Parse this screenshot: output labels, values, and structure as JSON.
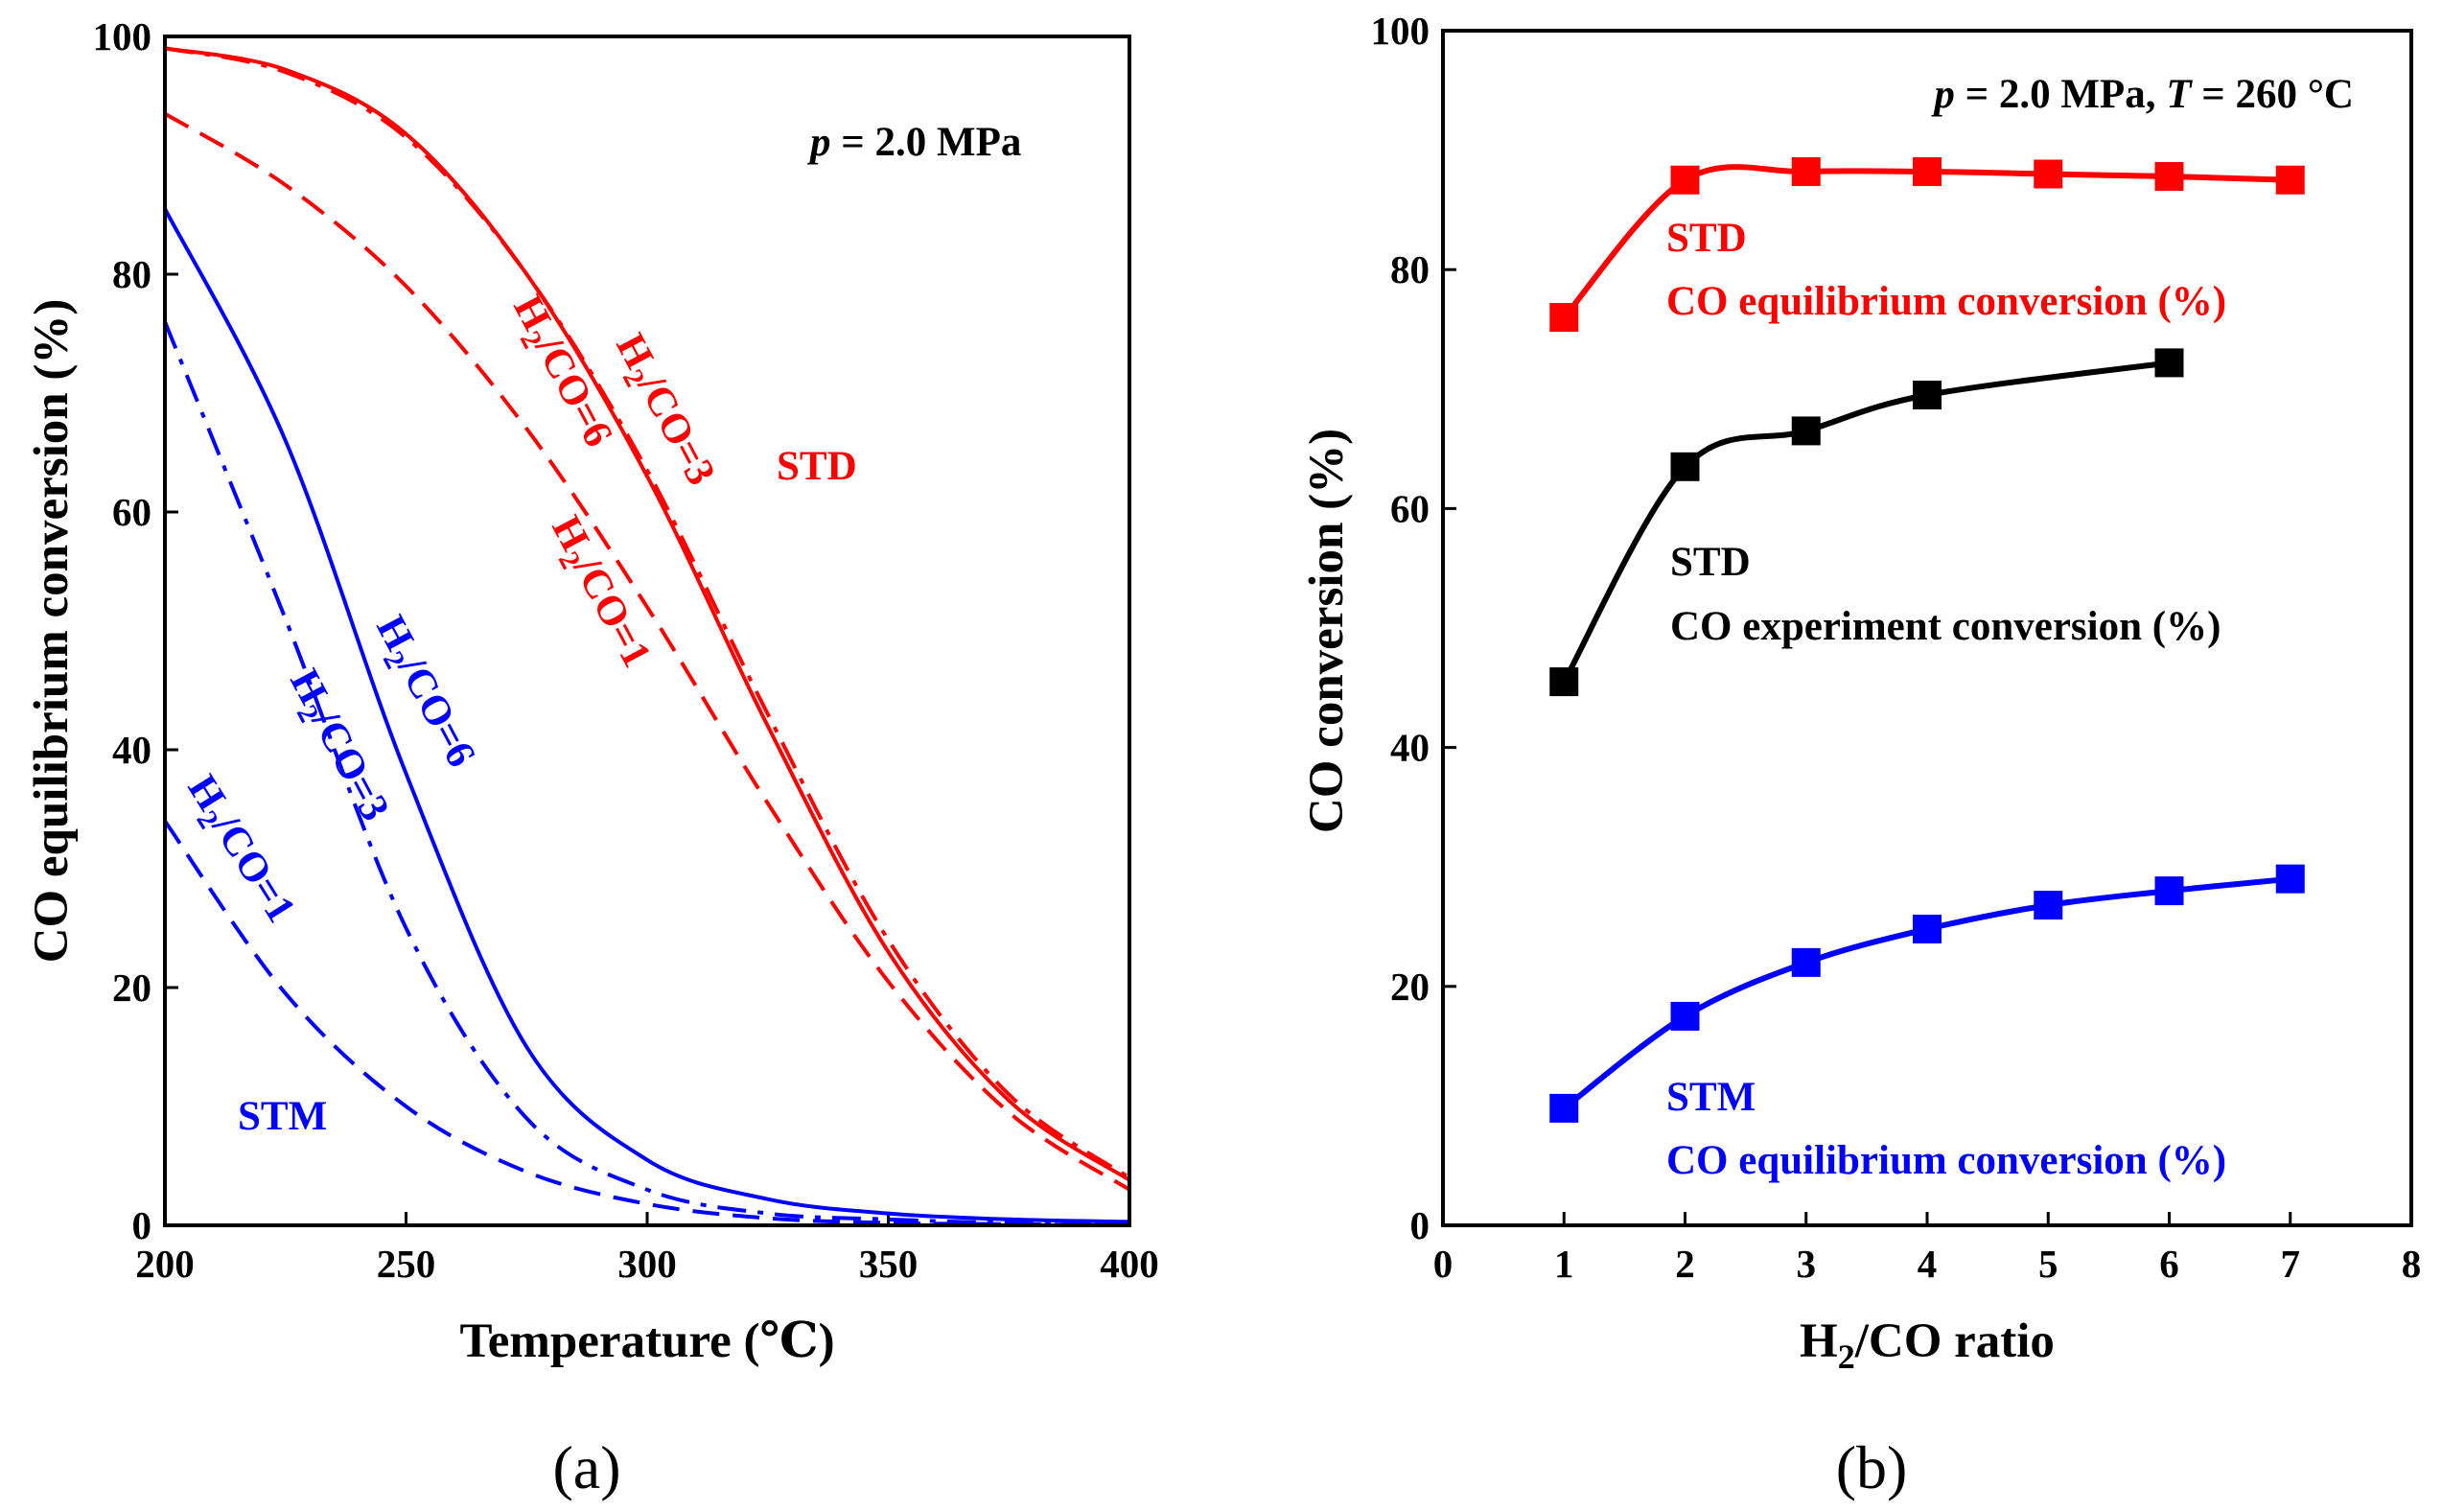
{
  "chart_data": [
    {
      "type": "line",
      "panel_label": "(a)",
      "xlabel": "Temperature (℃)",
      "ylabel": "CO equilibrium conversion (%)",
      "xlim": [
        200,
        400
      ],
      "ylim": [
        0,
        100
      ],
      "x_ticks": [
        "200",
        "250",
        "300",
        "350",
        "400"
      ],
      "y_ticks": [
        "0",
        "20",
        "40",
        "60",
        "80",
        "100"
      ],
      "annotation": "p = 2.0 MPa",
      "annotation_italic": "p",
      "annotation_rest": " = 2.0 MPa",
      "group_labels": {
        "std": "STD",
        "stm": "STM"
      },
      "colors": {
        "std": "#ff0000",
        "stm": "#0000ff"
      },
      "series": [
        {
          "name": "H2/CO=3",
          "group": "STD",
          "dash": "dashdot",
          "label_main": "H",
          "label_sub": "2",
          "label_rest": "/CO=3",
          "x": [
            200,
            225,
            250,
            275,
            300,
            325,
            350,
            375,
            400
          ],
          "y": [
            99.0,
            97.0,
            91.5,
            80.0,
            63.5,
            43.0,
            24.0,
            11.0,
            4.0
          ]
        },
        {
          "name": "H2/CO=6",
          "group": "STD",
          "dash": "solid",
          "label_main": "H",
          "label_sub": "2",
          "label_rest": "/CO=6",
          "x": [
            200,
            225,
            250,
            275,
            300,
            325,
            350,
            375,
            400
          ],
          "y": [
            99.0,
            97.2,
            91.8,
            80.0,
            63.0,
            42.0,
            23.0,
            10.5,
            3.8
          ]
        },
        {
          "name": "H2/CO=1",
          "group": "STD",
          "dash": "dash",
          "label_main": "H",
          "label_sub": "2",
          "label_rest": "/CO=1",
          "x": [
            200,
            225,
            250,
            275,
            300,
            325,
            350,
            375,
            400
          ],
          "y": [
            93.5,
            87.5,
            79.0,
            67.0,
            52.0,
            35.5,
            20.5,
            9.5,
            3.0
          ]
        },
        {
          "name": "H2/CO=6",
          "group": "STM",
          "dash": "solid",
          "label_main": "H",
          "label_sub": "2",
          "label_rest": "/CO=6",
          "x": [
            200,
            225,
            250,
            275,
            300,
            325,
            350,
            375,
            400
          ],
          "y": [
            85.5,
            66.0,
            38.0,
            15.0,
            5.5,
            2.2,
            1.0,
            0.5,
            0.3
          ]
        },
        {
          "name": "H2/CO=3",
          "group": "STM",
          "dash": "dashdot",
          "label_main": "H",
          "label_sub": "2",
          "label_rest": "/CO=3",
          "x": [
            200,
            225,
            250,
            275,
            300,
            325,
            350,
            375,
            400
          ],
          "y": [
            76.0,
            51.0,
            25.0,
            9.0,
            3.0,
            1.0,
            0.5,
            0.2,
            0.1
          ]
        },
        {
          "name": "H2/CO=1",
          "group": "STM",
          "dash": "dash",
          "label_main": "H",
          "label_sub": "2",
          "label_rest": "/CO=1",
          "x": [
            200,
            225,
            250,
            275,
            300,
            325,
            350,
            375,
            400
          ],
          "y": [
            34.0,
            19.5,
            10.0,
            4.5,
            1.8,
            0.6,
            0.2,
            0.1,
            0.0
          ]
        }
      ]
    },
    {
      "type": "line",
      "panel_label": "(b)",
      "xlabel_main": "H",
      "xlabel_sub": "2",
      "xlabel_rest": "/CO ratio",
      "ylabel": "CO conversion (%)",
      "xlim": [
        0,
        8
      ],
      "ylim": [
        0,
        100
      ],
      "x_ticks": [
        "0",
        "1",
        "2",
        "3",
        "4",
        "5",
        "6",
        "7",
        "8"
      ],
      "y_ticks": [
        "0",
        "20",
        "40",
        "60",
        "80",
        "100"
      ],
      "annotation_parts": [
        "p",
        " = 2.0 MPa, ",
        "T",
        " = 260 °C"
      ],
      "marker": "square",
      "series": [
        {
          "name": "STD CO equilibrium conversion (%)",
          "label_line1": "STD",
          "label_line2": "CO equilibrium conversion (%)",
          "color": "#ff0000",
          "x": [
            1,
            2,
            3,
            4,
            5,
            6,
            7
          ],
          "y": [
            76.0,
            87.5,
            88.2,
            88.2,
            88.0,
            87.8,
            87.5
          ]
        },
        {
          "name": "STD CO experiment conversion (%)",
          "label_line1": "STD",
          "label_line2": "CO experiment conversion (%)",
          "color": "#000000",
          "x": [
            1,
            2,
            3,
            4,
            6
          ],
          "y": [
            45.5,
            63.5,
            66.5,
            69.5,
            72.2
          ]
        },
        {
          "name": "STM CO equilibrium conversion (%)",
          "label_line1": "STM",
          "label_line2": "CO equilibrium conversion (%)",
          "color": "#0000ff",
          "x": [
            1,
            2,
            3,
            4,
            5,
            6,
            7
          ],
          "y": [
            9.8,
            17.5,
            22.0,
            24.8,
            26.8,
            28.0,
            29.0
          ]
        }
      ]
    }
  ]
}
